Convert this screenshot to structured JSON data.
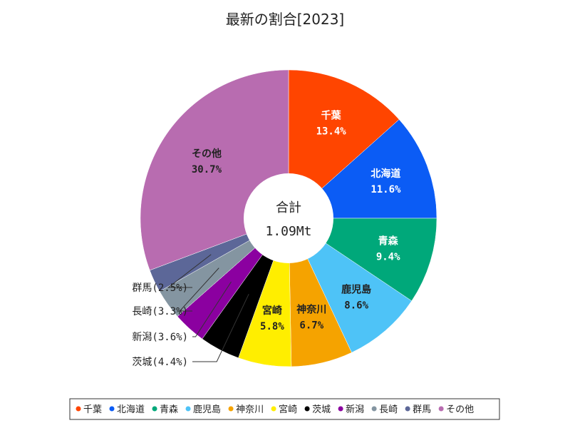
{
  "chart_data": {
    "type": "pie",
    "title": "最新の割合[2023]",
    "center_label": "合計",
    "center_value": "1.09Mt",
    "slices": [
      {
        "name": "千葉",
        "value": 13.4,
        "value_label": "13.4%",
        "color": "#ff4500",
        "text_color": "#ffffff",
        "label_mode": "inside"
      },
      {
        "name": "北海道",
        "value": 11.6,
        "value_label": "11.6%",
        "color": "#0b5cf5",
        "text_color": "#ffffff",
        "label_mode": "inside"
      },
      {
        "name": "青森",
        "value": 9.4,
        "value_label": "9.4%",
        "color": "#00a87a",
        "text_color": "#ffffff",
        "label_mode": "inside"
      },
      {
        "name": "鹿児島",
        "value": 8.6,
        "value_label": "8.6%",
        "color": "#4ec3f7",
        "text_color": "#222222",
        "label_mode": "inside"
      },
      {
        "name": "神奈川",
        "value": 6.7,
        "value_label": "6.7%",
        "color": "#f5a300",
        "text_color": "#222222",
        "label_mode": "inside"
      },
      {
        "name": "宮崎",
        "value": 5.8,
        "value_label": "5.8%",
        "color": "#ffee00",
        "text_color": "#222222",
        "label_mode": "inside"
      },
      {
        "name": "茨城",
        "value": 4.4,
        "value_label": "4.4%",
        "color": "#000000",
        "text_color": "#222222",
        "label_mode": "outside",
        "outside_label": "茨城(4.4%)"
      },
      {
        "name": "新潟",
        "value": 3.6,
        "value_label": "3.6%",
        "color": "#8b00a0",
        "text_color": "#222222",
        "label_mode": "outside",
        "outside_label": "新潟(3.6%)"
      },
      {
        "name": "長崎",
        "value": 3.3,
        "value_label": "3.3%",
        "color": "#8495a1",
        "text_color": "#222222",
        "label_mode": "outside",
        "outside_label": "長崎(3.3%)"
      },
      {
        "name": "群馬",
        "value": 2.5,
        "value_label": "2.5%",
        "color": "#5c6798",
        "text_color": "#222222",
        "label_mode": "outside",
        "outside_label": "群馬(2.5%)"
      },
      {
        "name": "その他",
        "value": 30.7,
        "value_label": "30.7%",
        "color": "#b86cb0",
        "text_color": "#222222",
        "label_mode": "inside"
      }
    ],
    "legend": [
      "千葉",
      "北海道",
      "青森",
      "鹿児島",
      "神奈川",
      "宮崎",
      "茨城",
      "新潟",
      "長崎",
      "群馬",
      "その他"
    ],
    "legend_position": "bottom"
  }
}
